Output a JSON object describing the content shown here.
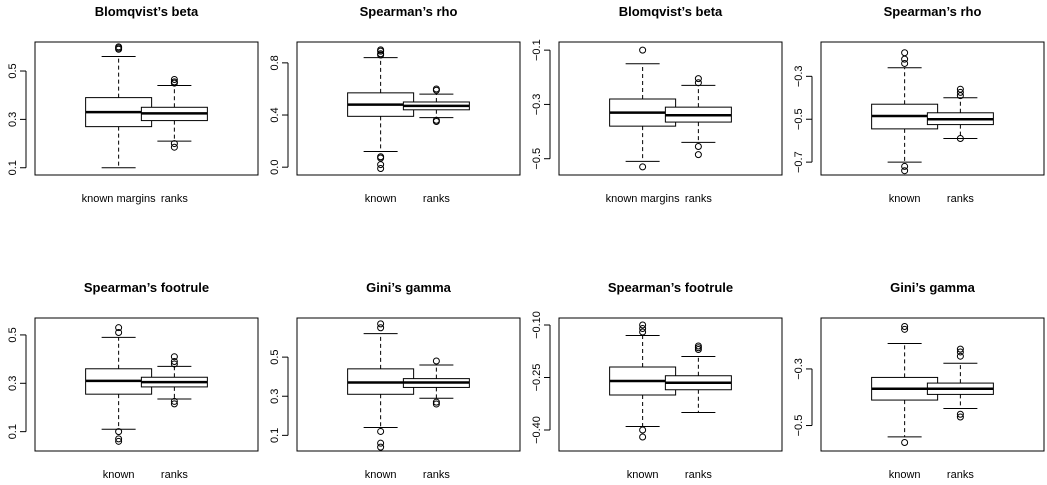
{
  "chart_data": [
    {
      "type": "boxplot",
      "title": "Blomqvist’s beta",
      "categories": [
        "known margins",
        "ranks"
      ],
      "ylim": [
        0.07,
        0.62
      ],
      "yticks": [
        0.1,
        0.3,
        0.5
      ],
      "ytick_labels": [
        "0.1",
        "0.3",
        "0.5"
      ],
      "boxes": [
        {
          "whisker_low": 0.1,
          "q1": 0.27,
          "median": 0.33,
          "q3": 0.39,
          "whisker_high": 0.56,
          "outliers": [
            0.59,
            0.595,
            0.6
          ]
        },
        {
          "whisker_low": 0.21,
          "q1": 0.295,
          "median": 0.325,
          "q3": 0.35,
          "whisker_high": 0.44,
          "outliers": [
            0.185,
            0.2,
            0.45,
            0.455,
            0.465
          ]
        }
      ]
    },
    {
      "type": "boxplot",
      "title": "Spearman’s rho",
      "categories": [
        "known",
        "ranks"
      ],
      "ylim": [
        -0.06,
        0.96
      ],
      "yticks": [
        0.0,
        0.4,
        0.8
      ],
      "ytick_labels": [
        "0.0",
        "0.4",
        "0.8"
      ],
      "boxes": [
        {
          "whisker_low": 0.12,
          "q1": 0.39,
          "median": 0.48,
          "q3": 0.57,
          "whisker_high": 0.84,
          "outliers": [
            -0.01,
            0.02,
            0.07,
            0.08,
            0.86,
            0.87,
            0.89,
            0.9
          ]
        },
        {
          "whisker_low": 0.38,
          "q1": 0.44,
          "median": 0.47,
          "q3": 0.5,
          "whisker_high": 0.56,
          "outliers": [
            0.35,
            0.36,
            0.59,
            0.6
          ]
        }
      ]
    },
    {
      "type": "boxplot",
      "title": "Blomqvist’s beta",
      "categories": [
        "known margins",
        "ranks"
      ],
      "ylim": [
        -0.56,
        -0.07
      ],
      "yticks": [
        -0.5,
        -0.3,
        -0.1
      ],
      "ytick_labels": [
        "−0.5",
        "−0.3",
        "−0.1"
      ],
      "boxes": [
        {
          "whisker_low": -0.51,
          "q1": -0.38,
          "median": -0.33,
          "q3": -0.28,
          "whisker_high": -0.15,
          "outliers": [
            -0.53,
            -0.1
          ]
        },
        {
          "whisker_low": -0.44,
          "q1": -0.365,
          "median": -0.34,
          "q3": -0.31,
          "whisker_high": -0.23,
          "outliers": [
            -0.485,
            -0.455,
            -0.22,
            -0.205
          ]
        }
      ]
    },
    {
      "type": "boxplot",
      "title": "Spearman’s rho",
      "categories": [
        "known",
        "ranks"
      ],
      "ylim": [
        -0.76,
        -0.14
      ],
      "yticks": [
        -0.7,
        -0.5,
        -0.3
      ],
      "ytick_labels": [
        "−0.7",
        "−0.5",
        "−0.3"
      ],
      "boxes": [
        {
          "whisker_low": -0.7,
          "q1": -0.545,
          "median": -0.485,
          "q3": -0.43,
          "whisker_high": -0.26,
          "outliers": [
            -0.74,
            -0.72,
            -0.24,
            -0.22,
            -0.19
          ]
        },
        {
          "whisker_low": -0.59,
          "q1": -0.525,
          "median": -0.5,
          "q3": -0.47,
          "whisker_high": -0.4,
          "outliers": [
            -0.59,
            -0.39,
            -0.375,
            -0.36
          ]
        }
      ]
    },
    {
      "type": "boxplot",
      "title": "Spearman’s footrule",
      "categories": [
        "known",
        "ranks"
      ],
      "ylim": [
        0.02,
        0.57
      ],
      "yticks": [
        0.1,
        0.3,
        0.5
      ],
      "ytick_labels": [
        "0.1",
        "0.3",
        "0.5"
      ],
      "boxes": [
        {
          "whisker_low": 0.11,
          "q1": 0.255,
          "median": 0.31,
          "q3": 0.36,
          "whisker_high": 0.49,
          "outliers": [
            0.06,
            0.07,
            0.1,
            0.51,
            0.53
          ]
        },
        {
          "whisker_low": 0.235,
          "q1": 0.285,
          "median": 0.305,
          "q3": 0.325,
          "whisker_high": 0.37,
          "outliers": [
            0.215,
            0.225,
            0.38,
            0.39,
            0.41
          ]
        }
      ]
    },
    {
      "type": "boxplot",
      "title": "Gini’s gamma",
      "categories": [
        "known",
        "ranks"
      ],
      "ylim": [
        0.02,
        0.7
      ],
      "yticks": [
        0.1,
        0.3,
        0.5
      ],
      "ytick_labels": [
        "0.1",
        "0.3",
        "0.5"
      ],
      "boxes": [
        {
          "whisker_low": 0.14,
          "q1": 0.31,
          "median": 0.37,
          "q3": 0.44,
          "whisker_high": 0.62,
          "outliers": [
            0.04,
            0.06,
            0.12,
            0.65,
            0.67
          ]
        },
        {
          "whisker_low": 0.29,
          "q1": 0.345,
          "median": 0.37,
          "q3": 0.39,
          "whisker_high": 0.46,
          "outliers": [
            0.26,
            0.27,
            0.48
          ]
        }
      ]
    },
    {
      "type": "boxplot",
      "title": "Spearman’s footrule",
      "categories": [
        "known",
        "ranks"
      ],
      "ylim": [
        -0.46,
        -0.08
      ],
      "yticks": [
        -0.4,
        -0.25,
        -0.1
      ],
      "ytick_labels": [
        "−0.40",
        "−0.25",
        "−0.10"
      ],
      "boxes": [
        {
          "whisker_low": -0.39,
          "q1": -0.3,
          "median": -0.26,
          "q3": -0.22,
          "whisker_high": -0.13,
          "outliers": [
            -0.42,
            -0.4,
            -0.12,
            -0.11,
            -0.1
          ]
        },
        {
          "whisker_low": -0.35,
          "q1": -0.285,
          "median": -0.265,
          "q3": -0.245,
          "whisker_high": -0.19,
          "outliers": [
            -0.17,
            -0.165,
            -0.16
          ]
        }
      ]
    },
    {
      "type": "boxplot",
      "title": "Gini’s gamma",
      "categories": [
        "known",
        "ranks"
      ],
      "ylim": [
        -0.59,
        -0.12
      ],
      "yticks": [
        -0.5,
        -0.3
      ],
      "ytick_labels": [
        "−0.5",
        "−0.3"
      ],
      "boxes": [
        {
          "whisker_low": -0.54,
          "q1": -0.41,
          "median": -0.37,
          "q3": -0.33,
          "whisker_high": -0.21,
          "outliers": [
            -0.56,
            -0.16,
            -0.15
          ]
        },
        {
          "whisker_low": -0.44,
          "q1": -0.39,
          "median": -0.37,
          "q3": -0.35,
          "whisker_high": -0.28,
          "outliers": [
            -0.47,
            -0.46,
            -0.255,
            -0.24,
            -0.23
          ]
        }
      ]
    }
  ]
}
